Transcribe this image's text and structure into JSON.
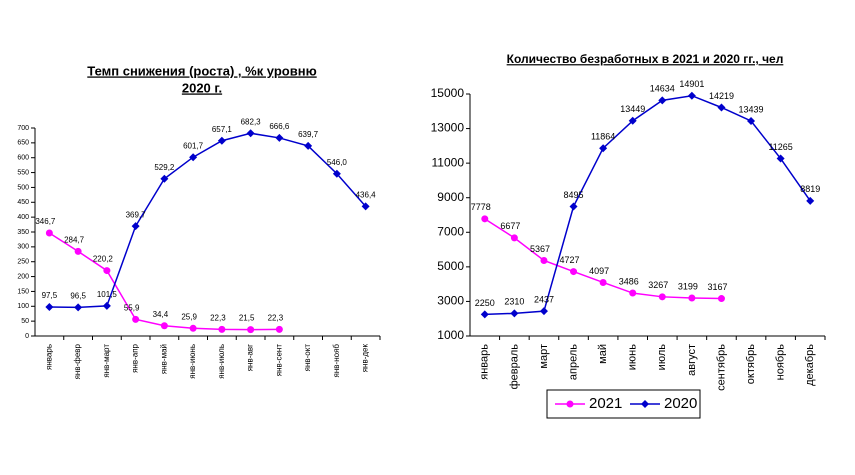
{
  "chart_data": [
    {
      "type": "line",
      "title": [
        "Темп снижения (роста) , %к уровню",
        "2020 г."
      ],
      "categories": [
        "январь",
        "янв-февр",
        "янв-март",
        "янв-апр",
        "янв-май",
        "янв-июнь",
        "янв-июль",
        "янв-авг",
        "янв-сент",
        "янв-окт",
        "янв-нояб",
        "янв-дек"
      ],
      "series": [
        {
          "color": "#ff00ff",
          "marker": "circle",
          "values": [
            346.7,
            284.7,
            220.2,
            55.9,
            34.4,
            25.9,
            22.3,
            21.5,
            22.3,
            null,
            null,
            null
          ],
          "value_labels": [
            "346,7",
            "284,7",
            "220,2",
            "55,9",
            "34,4",
            "25,9",
            "22,3",
            "21,5",
            "22,3",
            null,
            null,
            null
          ]
        },
        {
          "color": "#0000cc",
          "marker": "diamond",
          "values": [
            97.5,
            96.5,
            101.5,
            369.7,
            529.2,
            601.7,
            657.1,
            682.3,
            666.6,
            639.7,
            546.0,
            436.4
          ],
          "value_labels": [
            "97,5",
            "96,5",
            "101,5",
            "369,7",
            "529,2",
            "601,7",
            "657,1",
            "682,3",
            "666,6",
            "639,7",
            "546,0",
            "436,4"
          ]
        }
      ],
      "ylim": [
        0,
        700
      ],
      "yticks": [
        0,
        50,
        100,
        150,
        200,
        250,
        300,
        350,
        400,
        450,
        500,
        550,
        600,
        650,
        700
      ]
    },
    {
      "type": "line",
      "title": [
        "Количество безработных в 2021 и 2020 гг., чел"
      ],
      "categories": [
        "январь",
        "февраль",
        "март",
        "апрель",
        "май",
        "июнь",
        "июль",
        "август",
        "сентябрь",
        "октябрь",
        "ноябрь",
        "декабрь"
      ],
      "series": [
        {
          "name": "2021",
          "color": "#ff00ff",
          "marker": "circle",
          "values": [
            7778,
            6677,
            5367,
            4727,
            4097,
            3486,
            3267,
            3199,
            3167,
            null,
            null,
            null
          ]
        },
        {
          "name": "2020",
          "color": "#0000cc",
          "marker": "diamond",
          "values": [
            2250,
            2310,
            2437,
            8495,
            11864,
            13449,
            14634,
            14901,
            14219,
            13439,
            11265,
            8819
          ]
        }
      ],
      "ylim": [
        1000,
        15000
      ],
      "yticks": [
        1000,
        3000,
        5000,
        7000,
        9000,
        11000,
        13000,
        15000
      ],
      "legend": "bottom"
    }
  ]
}
